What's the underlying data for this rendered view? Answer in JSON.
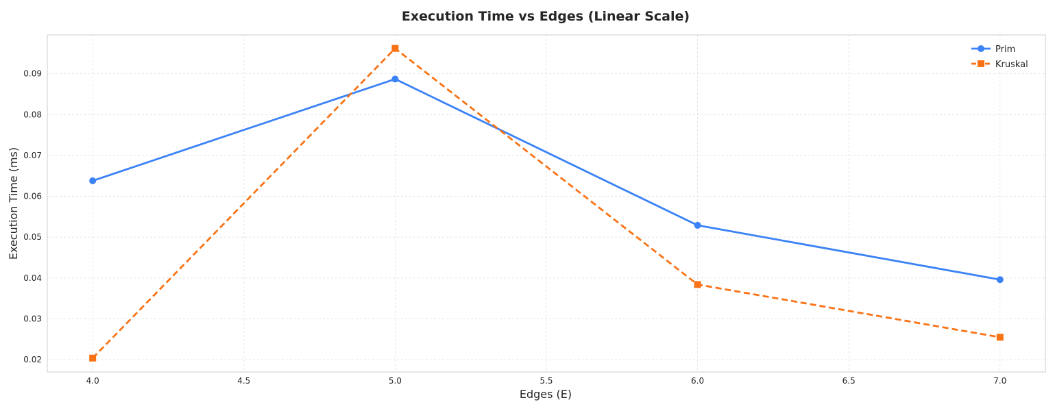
{
  "chart_data": {
    "type": "line",
    "title": "Execution Time vs Edges (Linear Scale)",
    "xlabel": "Edges (E)",
    "ylabel": "Execution Time (ms)",
    "xlim": [
      3.85,
      7.15
    ],
    "ylim": [
      0.017,
      0.0995
    ],
    "x_ticks": [
      "4.0",
      "4.5",
      "5.0",
      "5.5",
      "6.0",
      "6.5",
      "7.0"
    ],
    "y_ticks": [
      "0.02",
      "0.03",
      "0.04",
      "0.05",
      "0.06",
      "0.07",
      "0.08",
      "0.09"
    ],
    "grid": true,
    "legend_position": "top-right",
    "series": [
      {
        "name": "Prim",
        "color": "#3b82f6",
        "line_style": "solid",
        "marker": "circle",
        "x": [
          4,
          5,
          6,
          7
        ],
        "y": [
          0.0638,
          0.0887,
          0.0529,
          0.0396
        ]
      },
      {
        "name": "Kruskal",
        "color": "#f97316",
        "line_style": "dashed",
        "marker": "square",
        "x": [
          4,
          5,
          6,
          7
        ],
        "y": [
          0.0204,
          0.0962,
          0.0384,
          0.0255
        ]
      }
    ]
  }
}
